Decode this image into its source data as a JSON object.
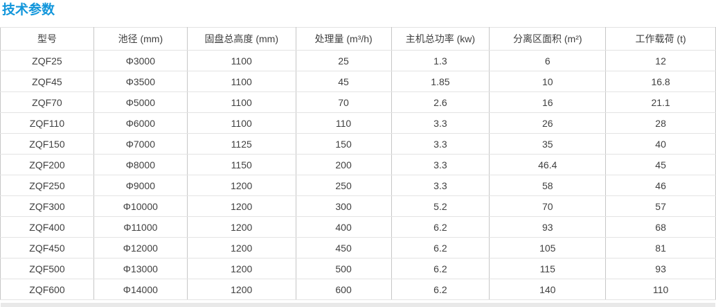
{
  "section": {
    "title": "技术参数",
    "title_color": "#1296db"
  },
  "table": {
    "headers": [
      "型号",
      "池径 (mm)",
      "固盘总高度 (mm)",
      "处理量 (m³/h)",
      "主机总功率 (kw)",
      "分离区面积 (m²)",
      "工作载荷 (t)"
    ],
    "rows": [
      [
        "ZQF25",
        "Φ3000",
        "1100",
        "25",
        "1.3",
        "6",
        "12"
      ],
      [
        "ZQF45",
        "Φ3500",
        "1100",
        "45",
        "1.85",
        "10",
        "16.8"
      ],
      [
        "ZQF70",
        "Φ5000",
        "1100",
        "70",
        "2.6",
        "16",
        "21.1"
      ],
      [
        "ZQF110",
        "Φ6000",
        "1100",
        "110",
        "3.3",
        "26",
        "28"
      ],
      [
        "ZQF150",
        "Φ7000",
        "1125",
        "150",
        "3.3",
        "35",
        "40"
      ],
      [
        "ZQF200",
        "Φ8000",
        "1150",
        "200",
        "3.3",
        "46.4",
        "45"
      ],
      [
        "ZQF250",
        "Φ9000",
        "1200",
        "250",
        "3.3",
        "58",
        "46"
      ],
      [
        "ZQF300",
        "Φ10000",
        "1200",
        "300",
        "5.2",
        "70",
        "57"
      ],
      [
        "ZQF400",
        "Φ11000",
        "1200",
        "400",
        "6.2",
        "93",
        "68"
      ],
      [
        "ZQF450",
        "Φ12000",
        "1200",
        "450",
        "6.2",
        "105",
        "81"
      ],
      [
        "ZQF500",
        "Φ13000",
        "1200",
        "500",
        "6.2",
        "115",
        "93"
      ],
      [
        "ZQF600",
        "Φ14000",
        "1200",
        "600",
        "6.2",
        "140",
        "110"
      ]
    ]
  }
}
